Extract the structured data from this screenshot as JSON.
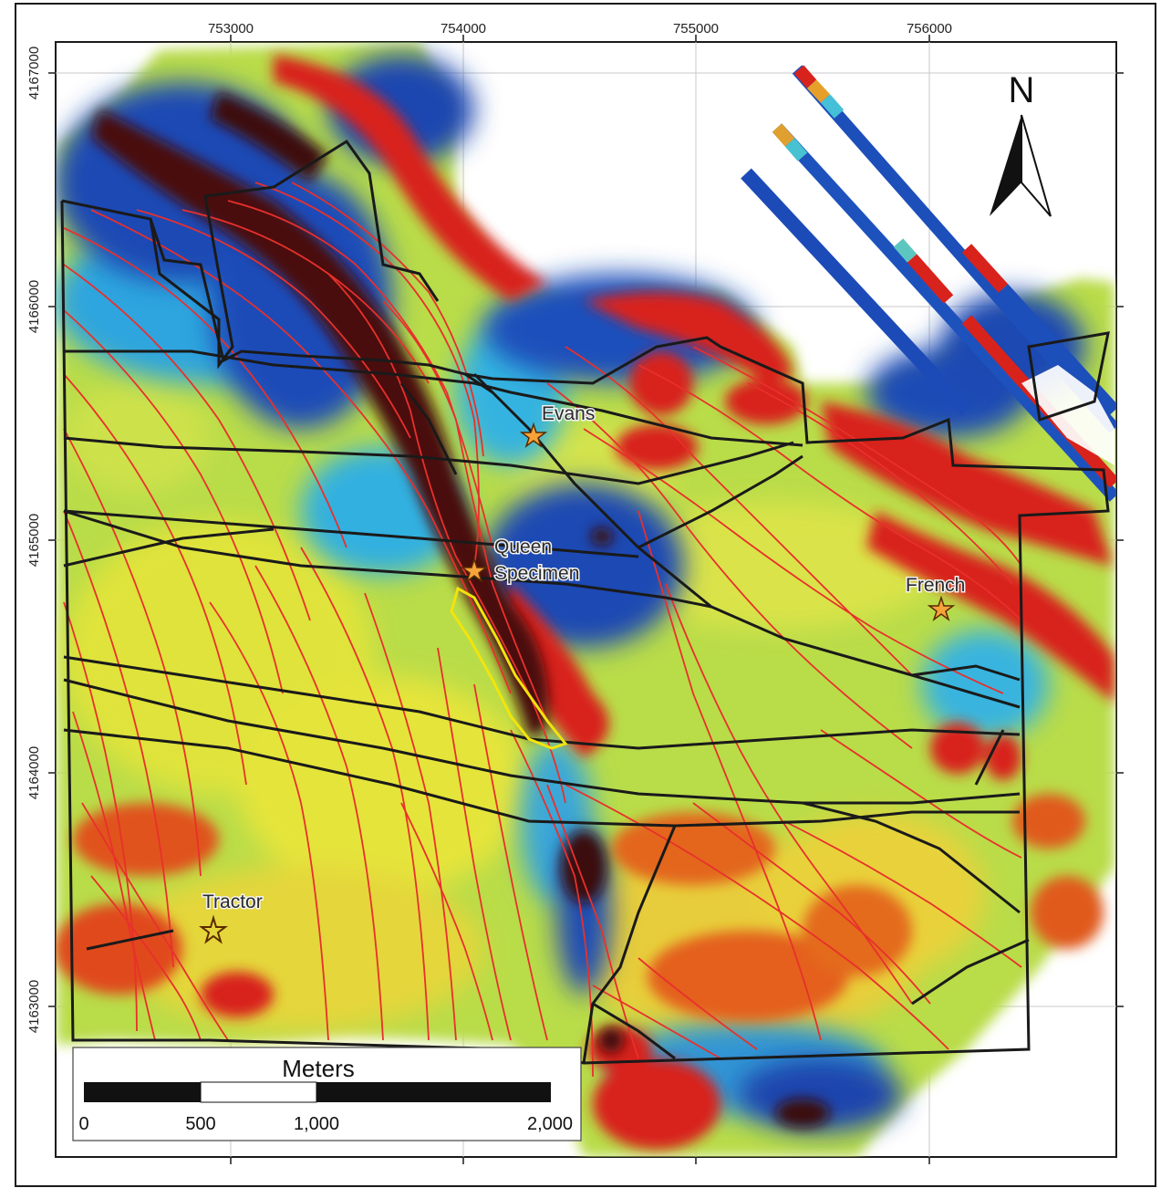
{
  "map": {
    "x_ticks": [
      "753000",
      "754000",
      "755000",
      "756000"
    ],
    "y_ticks": [
      "4167000",
      "4166000",
      "4165000",
      "4164000",
      "4163000"
    ],
    "north_label": "N",
    "sites": [
      {
        "name": "Evans"
      },
      {
        "name": "Queen Specimen",
        "line1": "Queen",
        "line2": "Specimen"
      },
      {
        "name": "French"
      },
      {
        "name": "Tractor"
      }
    ],
    "scale_bar": {
      "title": "Meters",
      "labels": [
        "0",
        "500",
        "1,000",
        "2,000"
      ]
    },
    "colors": {
      "faults_red": "#e8302c",
      "structures_black": "#1a1a1a",
      "target_outline": "#f2e40c",
      "star_fill": "#f5a33a",
      "low_blue": "#1c4fb8",
      "high_red": "#d8221c"
    }
  }
}
